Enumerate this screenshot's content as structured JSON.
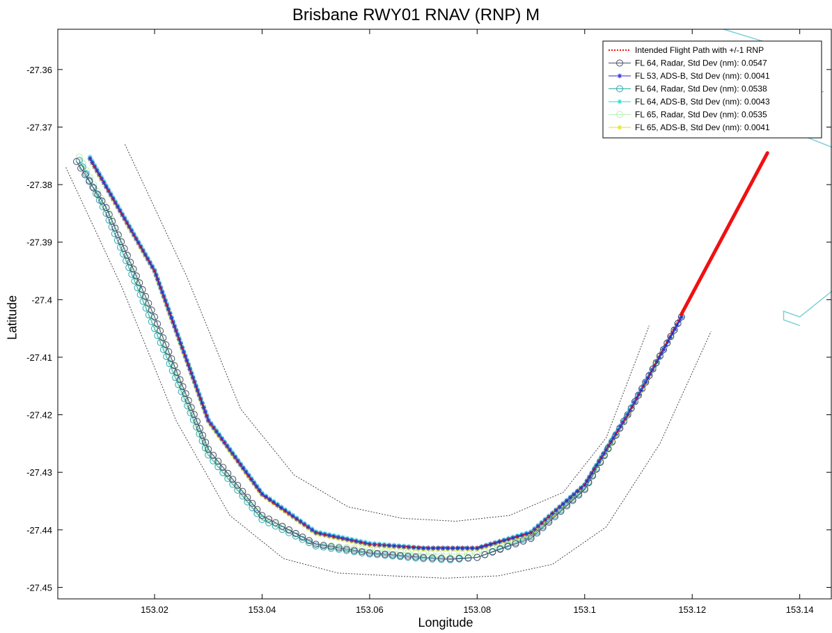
{
  "chart_data": {
    "type": "line",
    "title": "Brisbane RWY01 RNAV (RNP) M",
    "xlabel": "Longitude",
    "ylabel": "Latitude",
    "xlim": [
      153.002,
      153.146
    ],
    "ylim": [
      -27.452,
      -27.353
    ],
    "xticks": [
      153.02,
      153.04,
      153.06,
      153.08,
      153.1,
      153.12,
      153.14
    ],
    "xtick_labels": [
      "153.02",
      "153.04",
      "153.06",
      "153.08",
      "153.1",
      "153.12",
      "153.14"
    ],
    "yticks": [
      -27.36,
      -27.37,
      -27.38,
      -27.39,
      -27.4,
      -27.41,
      -27.42,
      -27.43,
      -27.44,
      -27.45
    ],
    "ytick_labels": [
      "-27.36",
      "-27.37",
      "-27.38",
      "-27.39",
      "-27.4",
      "-27.41",
      "-27.42",
      "-27.43",
      "-27.44",
      "-27.45"
    ],
    "grid": false,
    "legend_position": "top-right",
    "series": [
      {
        "name": "Intended Flight Path with +/-1 RNP",
        "color": "#ee1111",
        "marker": "none",
        "x": [
          153.008,
          153.02,
          153.03,
          153.04,
          153.05,
          153.06,
          153.07,
          153.08,
          153.09,
          153.1,
          153.108,
          153.118
        ],
        "y": [
          -27.3755,
          -27.395,
          -27.421,
          -27.434,
          -27.4405,
          -27.4425,
          -27.443,
          -27.443,
          -27.4405,
          -27.432,
          -27.42,
          -27.4025
        ],
        "thick_segment": {
          "x": [
            153.118,
            153.134
          ],
          "y": [
            -27.4025,
            -27.3745
          ]
        }
      },
      {
        "name": "FL 64, Radar, Std Dev (nm): 0.0547",
        "color": "#4a4a6a",
        "marker": "o",
        "x": [
          153.0055,
          153.011,
          153.02,
          153.03,
          153.04,
          153.05,
          153.06,
          153.07,
          153.075,
          153.08,
          153.09,
          153.1,
          153.108,
          153.118
        ],
        "y": [
          -27.376,
          -27.384,
          -27.403,
          -27.426,
          -27.4375,
          -27.4425,
          -27.444,
          -27.4448,
          -27.445,
          -27.4448,
          -27.4415,
          -27.433,
          -27.42,
          -27.403
        ]
      },
      {
        "name": "FL 53, ADS-B, Std Dev (nm): 0.0041",
        "color": "#2a2ad0",
        "marker": "*",
        "x": [
          153.008,
          153.02,
          153.03,
          153.04,
          153.05,
          153.06,
          153.07,
          153.08,
          153.09,
          153.1,
          153.108,
          153.118
        ],
        "y": [
          -27.3755,
          -27.395,
          -27.421,
          -27.4338,
          -27.4405,
          -27.4425,
          -27.4432,
          -27.4432,
          -27.4405,
          -27.4322,
          -27.42,
          -27.403
        ]
      },
      {
        "name": "FL 64, Radar, Std Dev (nm): 0.0538",
        "color": "#2aa6b0",
        "marker": "o",
        "x": [
          153.006,
          153.011,
          153.02,
          153.03,
          153.04,
          153.05,
          153.06,
          153.07,
          153.075,
          153.08,
          153.09,
          153.1,
          153.108,
          153.118
        ],
        "y": [
          -27.3758,
          -27.385,
          -27.405,
          -27.427,
          -27.4382,
          -27.4428,
          -27.4442,
          -27.445,
          -27.4452,
          -27.4448,
          -27.4412,
          -27.4328,
          -27.42,
          -27.403
        ]
      },
      {
        "name": "FL 64, ADS-B, Std Dev (nm): 0.0043",
        "color": "#22d8d8",
        "marker": "*",
        "x": [
          153.008,
          153.02,
          153.03,
          153.04,
          153.05,
          153.06,
          153.07,
          153.08,
          153.09,
          153.1,
          153.108,
          153.118
        ],
        "y": [
          -27.3752,
          -27.3948,
          -27.4208,
          -27.4336,
          -27.4403,
          -27.4423,
          -27.4431,
          -27.4431,
          -27.4403,
          -27.4321,
          -27.4198,
          -27.403
        ]
      },
      {
        "name": "FL 65, Radar, Std Dev (nm): 0.0535",
        "color": "#b6f0b4",
        "marker": "o",
        "x": [
          153.006,
          153.012,
          153.02,
          153.03,
          153.04,
          153.05,
          153.06,
          153.07,
          153.08,
          153.09,
          153.1,
          153.108,
          153.118
        ],
        "y": [
          -27.3752,
          -27.386,
          -27.404,
          -27.4265,
          -27.4378,
          -27.4425,
          -27.4435,
          -27.4442,
          -27.4442,
          -27.441,
          -27.4325,
          -27.42,
          -27.403
        ]
      },
      {
        "name": "FL 65, ADS-B, Std Dev (nm): 0.0041",
        "color": "#e2e21a",
        "marker": "*",
        "x": [
          153.008,
          153.02,
          153.03,
          153.04,
          153.05,
          153.06,
          153.07,
          153.08,
          153.09,
          153.1,
          153.108,
          153.118
        ],
        "y": [
          -27.3757,
          -27.3952,
          -27.4212,
          -27.434,
          -27.4407,
          -27.4427,
          -27.4434,
          -27.4434,
          -27.4407,
          -27.4323,
          -27.4202,
          -27.403
        ]
      }
    ],
    "boundaries": [
      {
        "color": "#444444",
        "x": [
          153.0145,
          153.026,
          153.036,
          153.046,
          153.056,
          153.066,
          153.076,
          153.086,
          153.096,
          153.104,
          153.112
        ],
        "y": [
          -27.373,
          -27.396,
          -27.419,
          -27.4305,
          -27.436,
          -27.438,
          -27.4385,
          -27.4375,
          -27.4335,
          -27.424,
          -27.4045
        ]
      },
      {
        "color": "#444444",
        "x": [
          153.0035,
          153.014,
          153.024,
          153.034,
          153.044,
          153.054,
          153.064,
          153.074,
          153.084,
          153.094,
          153.104,
          153.114,
          153.1235
        ],
        "y": [
          -27.377,
          -27.398,
          -27.421,
          -27.4375,
          -27.445,
          -27.4475,
          -27.448,
          -27.4484,
          -27.448,
          -27.446,
          -27.4395,
          -27.425,
          -27.4055
        ]
      }
    ],
    "coastlines": [
      {
        "color": "#7fd0d6",
        "x": [
          153.1255,
          153.137
        ],
        "y": [
          -27.3529,
          -27.3562
        ]
      },
      {
        "color": "#7fd0d6",
        "x": [
          153.137,
          153.1445
        ],
        "y": [
          -27.3658,
          -27.3638
        ]
      },
      {
        "color": "#7fd0d6",
        "x": [
          153.131,
          153.146
        ],
        "y": [
          -27.368,
          -27.3735
        ]
      },
      {
        "color": "#7fd0d6",
        "x": [
          153.146,
          153.14,
          153.137,
          153.137,
          153.14
        ],
        "y": [
          -27.3985,
          -27.403,
          -27.402,
          -27.4035,
          -27.4045
        ]
      }
    ]
  }
}
